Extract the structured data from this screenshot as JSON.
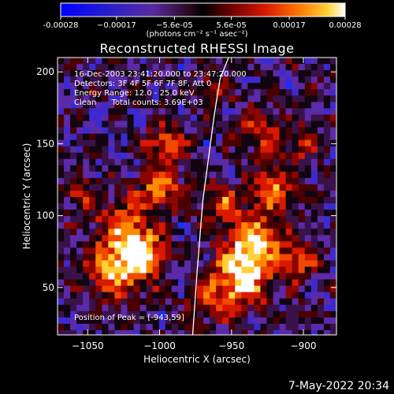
{
  "chart_data": {
    "type": "heatmap",
    "title": "Reconstructed RHESSI Image",
    "xlabel": "Heliocentric X (arcsec)",
    "ylabel": "Heliocentric Y (arcsec)",
    "xlim": [
      -1071,
      -877
    ],
    "ylim": [
      17,
      210
    ],
    "x_ticks": [
      -1050,
      -1000,
      -950,
      -900
    ],
    "x_tick_labels": [
      "−1050",
      "−1000",
      "−950",
      "−900"
    ],
    "y_ticks": [
      50,
      100,
      150,
      200
    ],
    "y_tick_labels": [
      "50",
      "100",
      "150",
      "200"
    ],
    "colorbar": {
      "units_label": "(photons cm⁻² s⁻¹ asec⁻²)",
      "range": [
        -0.00028,
        0.00028
      ],
      "tick_values": [
        -0.00028,
        -0.00017,
        -5.6e-05,
        5.6e-05,
        0.00017,
        0.00028
      ],
      "tick_labels": [
        "-0.00028",
        "−0.00017",
        "−5.6e-05",
        "5.6e-05",
        "0.00017",
        "0.00028"
      ]
    },
    "annotations": [
      "16-Dec-2003 23:41:20.000 to 23:47:20.000",
      "Detectors: 3F 4F 5F 6F 7F 8F, Att 0",
      "Energy Range: 12.0 - 25.0 keV",
      "Clean      Total counts: 3.69E+03"
    ],
    "peak_label": "Position of Peak = [-943,59]",
    "peak": [
      -943,
      59
    ],
    "limb_curve": {
      "x": [
        -977,
        -974,
        -970,
        -966,
        -962,
        -958,
        -952
      ],
      "y": [
        17,
        60,
        110,
        140,
        170,
        195,
        210
      ]
    }
  },
  "timestamp": "7-May-2022 20:34"
}
